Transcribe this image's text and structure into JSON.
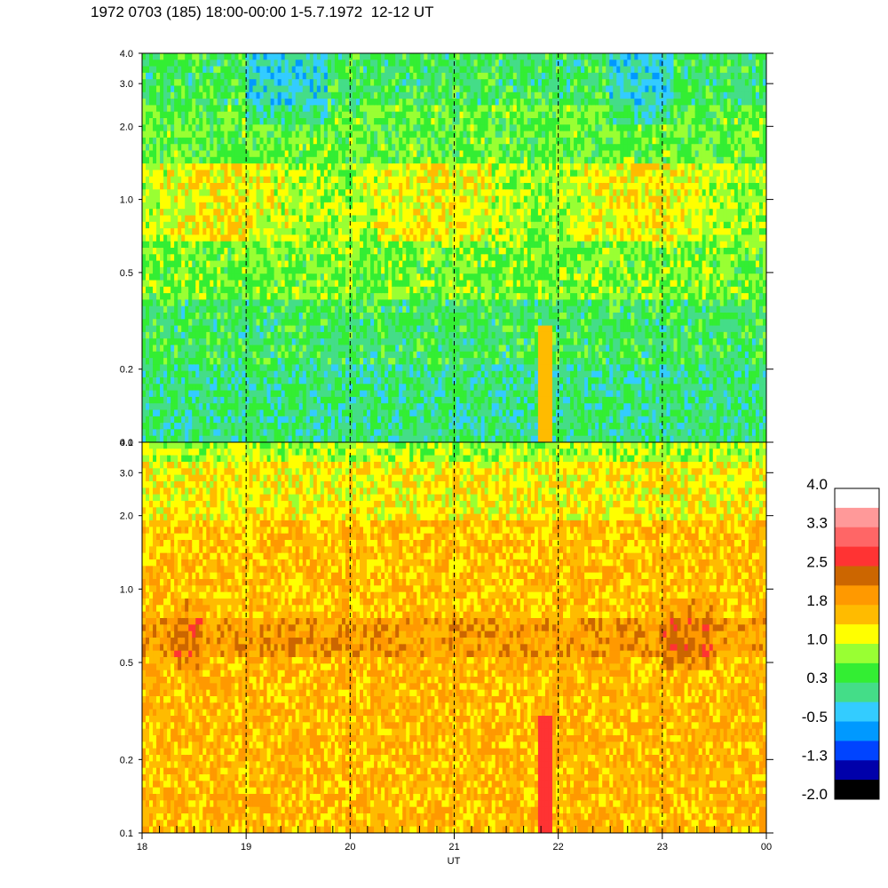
{
  "title": "1972 0703 (185) 18:00-00:00 1-5.7.1972  12-12 UT",
  "chart_data": {
    "type": "heatmap",
    "xlabel": "UT",
    "x_ticks": [
      "18",
      "19",
      "20",
      "21",
      "22",
      "23",
      "00"
    ],
    "x_range_hours": [
      18,
      24
    ],
    "y_scale": "log",
    "y_range": [
      0.1,
      4.0
    ],
    "y_ticks": [
      "4.0",
      "3.0",
      "2.0",
      "1.0",
      "0.5",
      "0.2",
      "0.1"
    ],
    "y_tick_values": [
      4.0,
      3.0,
      2.0,
      1.0,
      0.5,
      0.2,
      0.1
    ],
    "dashed_hour_lines": [
      19,
      20,
      21,
      22,
      23
    ],
    "panels": [
      {
        "name": "upper",
        "dominant_levels": "mostly green and cyan, with yellow-orange bands near 0.5-1.0",
        "features": [
          "dark blue patches above 2.0",
          "orange vertical band near 21:53 UT"
        ]
      },
      {
        "name": "lower",
        "dominant_levels": "mostly orange and yellow, darker orange band near 0.5",
        "features": [
          "red vertical band near 21:53 UT below 0.3"
        ]
      }
    ],
    "colorbar": {
      "labels": [
        "4.0",
        "3.3",
        "2.5",
        "1.8",
        "1.0",
        "0.3",
        "-0.5",
        "-1.3",
        "-2.0"
      ],
      "colors": [
        "#ffffff",
        "#ff9999",
        "#ff6666",
        "#ff3333",
        "#cc6600",
        "#ff9900",
        "#ffbb00",
        "#ffff00",
        "#99ff33",
        "#33ee33",
        "#44dd88",
        "#33ccff",
        "#0099ff",
        "#0044ff",
        "#0000aa",
        "#000000"
      ]
    }
  }
}
